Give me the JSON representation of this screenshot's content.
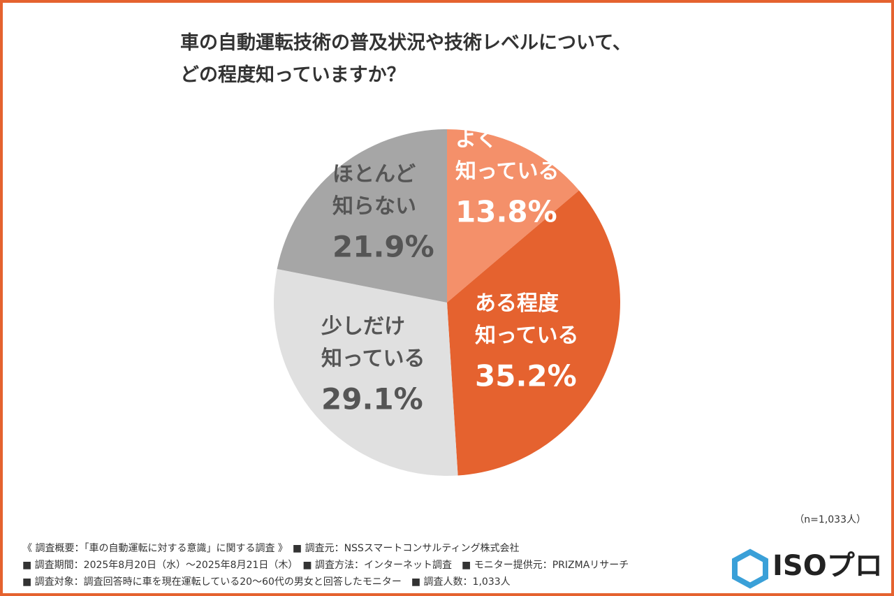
{
  "chart_data": {
    "type": "pie",
    "title": "車の自動運転技術の普及状況や技術レベルについて、\nどの程度知っていますか？",
    "categories": [
      "よく\n知っている",
      "ある程度\n知っている",
      "少しだけ\n知っている",
      "ほとんど\n知らない"
    ],
    "values": [
      13.8,
      35.2,
      29.1,
      21.9
    ],
    "value_labels": [
      "13.8%",
      "35.2%",
      "29.1%",
      "21.9%"
    ],
    "colors": [
      "#f4906a",
      "#e5622f",
      "#e0e0e0",
      "#a6a6a6"
    ],
    "label_colors": [
      "#ffffff",
      "#ffffff",
      "#555555",
      "#555555"
    ],
    "sample": "（n=1,033人）"
  },
  "footer": {
    "notes": [
      "《 調査概要：「車の自動運転に対する意識」に関する調査 》　■ 調査元：NSSスマートコンサルティング株式会社",
      "■ 調査期間：2025年8月20日（水）～2025年8月21日（木）　■ 調査方法：インターネット調査　■ モニター提供元：PRIZMAリサーチ",
      "■ 調査対象：調査回答時に車を現在運転している20～60代の男女と回答したモニター　■ 調査人数：1,033人"
    ],
    "logo": "ISOプロ"
  }
}
